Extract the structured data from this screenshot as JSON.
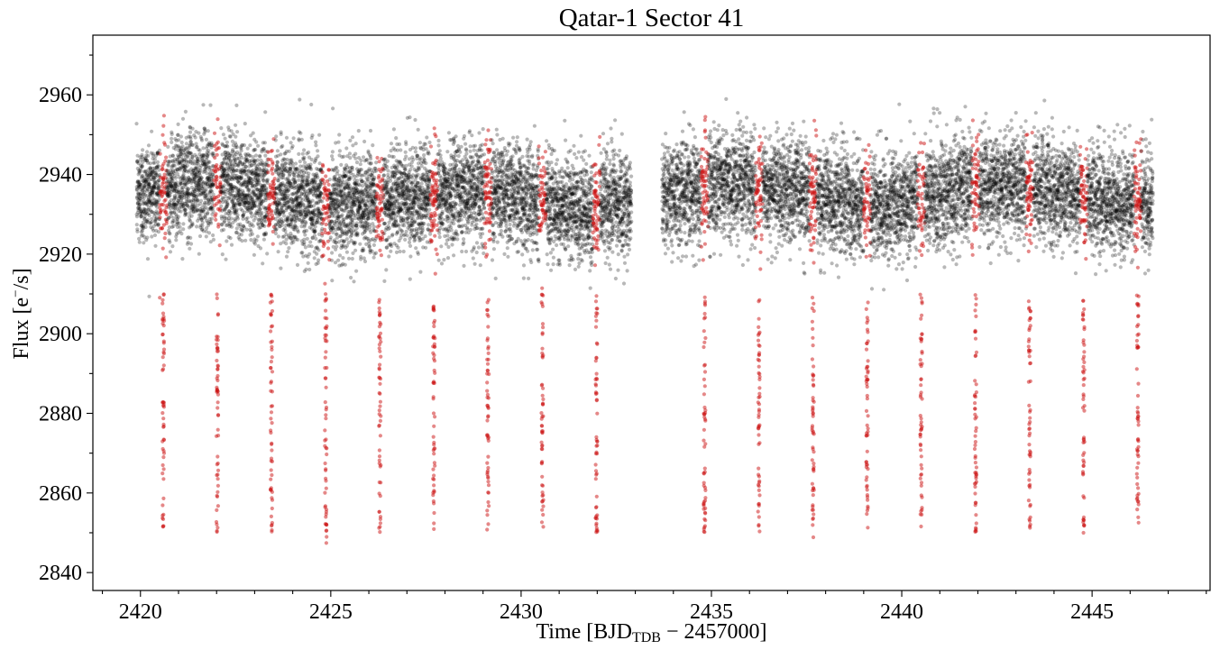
{
  "chart_data": {
    "type": "scatter",
    "title": "Qatar-1 Sector 41",
    "xlabel": {
      "main": "Time [BJD",
      "sub": "TDB",
      "rest": " − 2457000]"
    },
    "ylabel": {
      "main": "Flux [e",
      "sup": "−",
      "rest": "/s]"
    },
    "xlim": [
      2418.75,
      2448.1
    ],
    "ylim": [
      2835.5,
      2975.0
    ],
    "xticks": [
      2420,
      2425,
      2430,
      2435,
      2440,
      2445
    ],
    "xtick_labels": [
      "2420",
      "2425",
      "2430",
      "2435",
      "2440",
      "2445"
    ],
    "yticks": [
      2840,
      2860,
      2880,
      2900,
      2920,
      2940,
      2960
    ],
    "ytick_labels": [
      "2840",
      "2860",
      "2880",
      "2900",
      "2920",
      "2940",
      "2960"
    ],
    "grid": false,
    "legend": "none",
    "series": [
      {
        "color": "#000000",
        "alpha": 0.28,
        "segments": [
          [
            2419.9,
            2432.9
          ],
          [
            2433.7,
            2446.6
          ]
        ],
        "baseline": 2935,
        "scatter": 6.5,
        "description": "out-of-transit light curve"
      },
      {
        "color": "#cc1111",
        "alpha": 0.5,
        "transit_times": [
          2420.6,
          2422.02,
          2423.44,
          2424.87,
          2426.29,
          2427.71,
          2429.13,
          2430.56,
          2431.98,
          2434.82,
          2436.25,
          2437.67,
          2439.09,
          2440.51,
          2441.94,
          2443.36,
          2444.78,
          2446.2
        ],
        "transit_depth_min": 2850,
        "description": "in-transit points"
      }
    ]
  }
}
